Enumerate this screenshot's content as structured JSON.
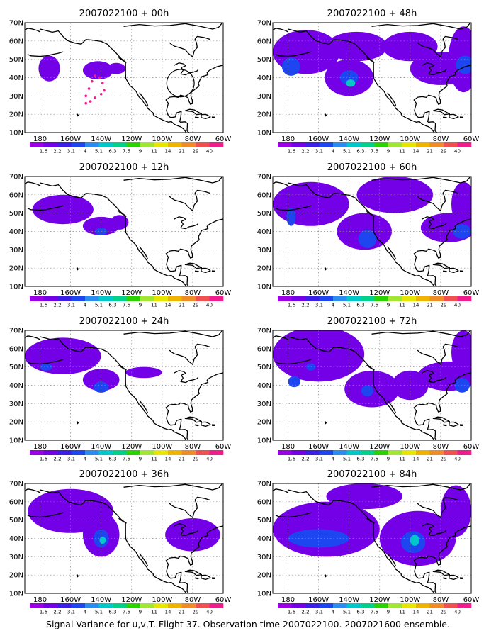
{
  "colorbar": {
    "labels": [
      "1.6",
      "2.2",
      "3.1",
      "4",
      "5.1",
      "6.3",
      "7.5",
      "9",
      "11",
      "14",
      "21",
      "29",
      "40"
    ],
    "colors": [
      "#9b00e6",
      "#7300e6",
      "#3c1fe6",
      "#1e46f0",
      "#2a8cf0",
      "#00c8c8",
      "#00d28c",
      "#2ad200",
      "#a0e632",
      "#e6e600",
      "#f0b400",
      "#f08c28",
      "#f05050",
      "#f01e8c"
    ]
  },
  "axes": {
    "lon_labels": [
      "180",
      "160W",
      "140W",
      "120W",
      "100W",
      "80W",
      "60W"
    ],
    "lat_labels": [
      "10N",
      "20N",
      "30N",
      "40N",
      "50N",
      "60N",
      "70N"
    ]
  },
  "panels": [
    {
      "title": "2007022100 + 00h",
      "blobs": [
        {
          "lon": 174,
          "lat": 45,
          "rx": 7,
          "ry": 7,
          "level": 1
        },
        {
          "lon": 142,
          "lat": 44,
          "rx": 10,
          "ry": 5,
          "level": 1
        },
        {
          "lon": 130,
          "lat": 45,
          "rx": 6,
          "ry": 3,
          "level": 1
        }
      ],
      "circle": {
        "lon": 88,
        "lat": 37,
        "r": 9
      },
      "track": [
        [
          150,
          30
        ],
        [
          148,
          34
        ],
        [
          146,
          38
        ],
        [
          144,
          41
        ],
        [
          141,
          40
        ],
        [
          139,
          37
        ],
        [
          138,
          33
        ],
        [
          140,
          31
        ],
        [
          144,
          29
        ],
        [
          147,
          27
        ],
        [
          150,
          26
        ]
      ]
    },
    {
      "title": "2007022100 + 48h",
      "blobs": [
        {
          "lon": 168,
          "lat": 54,
          "rx": 22,
          "ry": 12,
          "level": 1
        },
        {
          "lon": 140,
          "lat": 40,
          "rx": 16,
          "ry": 10,
          "level": 1
        },
        {
          "lon": 135,
          "lat": 57,
          "rx": 20,
          "ry": 8,
          "level": 1
        },
        {
          "lon": 100,
          "lat": 57,
          "rx": 18,
          "ry": 8,
          "level": 1
        },
        {
          "lon": 80,
          "lat": 45,
          "rx": 20,
          "ry": 9,
          "level": 1
        },
        {
          "lon": 65,
          "lat": 50,
          "rx": 10,
          "ry": 18,
          "level": 1
        },
        {
          "lon": 178,
          "lat": 46,
          "rx": 6,
          "ry": 5,
          "level": 3
        },
        {
          "lon": 140,
          "lat": 40,
          "rx": 6,
          "ry": 4,
          "level": 3
        },
        {
          "lon": 139,
          "lat": 37,
          "rx": 3,
          "ry": 2,
          "level": 5
        },
        {
          "lon": 64,
          "lat": 47,
          "rx": 6,
          "ry": 5,
          "level": 3
        }
      ]
    },
    {
      "title": "2007022100 + 12h",
      "blobs": [
        {
          "lon": 165,
          "lat": 52,
          "rx": 20,
          "ry": 8,
          "level": 1
        },
        {
          "lon": 140,
          "lat": 43,
          "rx": 12,
          "ry": 5,
          "level": 1
        },
        {
          "lon": 128,
          "lat": 45,
          "rx": 6,
          "ry": 4,
          "level": 1
        },
        {
          "lon": 140,
          "lat": 40,
          "rx": 4,
          "ry": 2,
          "level": 3
        }
      ]
    },
    {
      "title": "2007022100 + 60h",
      "blobs": [
        {
          "lon": 165,
          "lat": 55,
          "rx": 25,
          "ry": 12,
          "level": 1
        },
        {
          "lon": 130,
          "lat": 40,
          "rx": 18,
          "ry": 10,
          "level": 1
        },
        {
          "lon": 110,
          "lat": 60,
          "rx": 25,
          "ry": 10,
          "level": 1
        },
        {
          "lon": 75,
          "lat": 42,
          "rx": 18,
          "ry": 8,
          "level": 1
        },
        {
          "lon": 65,
          "lat": 55,
          "rx": 8,
          "ry": 12,
          "level": 1
        },
        {
          "lon": 178,
          "lat": 48,
          "rx": 3,
          "ry": 5,
          "level": 3
        },
        {
          "lon": 128,
          "lat": 36,
          "rx": 6,
          "ry": 5,
          "level": 3
        },
        {
          "lon": 66,
          "lat": 40,
          "rx": 6,
          "ry": 4,
          "level": 3
        }
      ]
    },
    {
      "title": "2007022100 + 24h",
      "blobs": [
        {
          "lon": 165,
          "lat": 56,
          "rx": 25,
          "ry": 10,
          "level": 1
        },
        {
          "lon": 140,
          "lat": 43,
          "rx": 12,
          "ry": 6,
          "level": 1
        },
        {
          "lon": 112,
          "lat": 47,
          "rx": 12,
          "ry": 3,
          "level": 1
        },
        {
          "lon": 176,
          "lat": 50,
          "rx": 4,
          "ry": 2,
          "level": 3
        },
        {
          "lon": 140,
          "lat": 39,
          "rx": 5,
          "ry": 3,
          "level": 3
        }
      ]
    },
    {
      "title": "2007022100 + 72h",
      "blobs": [
        {
          "lon": 160,
          "lat": 57,
          "rx": 30,
          "ry": 15,
          "level": 1
        },
        {
          "lon": 125,
          "lat": 38,
          "rx": 18,
          "ry": 10,
          "level": 1
        },
        {
          "lon": 100,
          "lat": 40,
          "rx": 12,
          "ry": 8,
          "level": 1
        },
        {
          "lon": 75,
          "lat": 45,
          "rx": 20,
          "ry": 8,
          "level": 1
        },
        {
          "lon": 65,
          "lat": 58,
          "rx": 8,
          "ry": 12,
          "level": 1
        },
        {
          "lon": 176,
          "lat": 42,
          "rx": 4,
          "ry": 3,
          "level": 3
        },
        {
          "lon": 165,
          "lat": 50,
          "rx": 3,
          "ry": 2,
          "level": 3
        },
        {
          "lon": 128,
          "lat": 37,
          "rx": 4,
          "ry": 3,
          "level": 3
        },
        {
          "lon": 66,
          "lat": 40,
          "rx": 5,
          "ry": 4,
          "level": 3
        }
      ]
    },
    {
      "title": "2007022100 + 36h",
      "blobs": [
        {
          "lon": 160,
          "lat": 55,
          "rx": 28,
          "ry": 12,
          "level": 1
        },
        {
          "lon": 140,
          "lat": 42,
          "rx": 12,
          "ry": 12,
          "level": 1
        },
        {
          "lon": 80,
          "lat": 42,
          "rx": 18,
          "ry": 9,
          "level": 1
        },
        {
          "lon": 140,
          "lat": 40,
          "rx": 5,
          "ry": 5,
          "level": 3
        },
        {
          "lon": 139,
          "lat": 39,
          "rx": 2,
          "ry": 2,
          "level": 5
        }
      ]
    },
    {
      "title": "2007022100 + 84h",
      "blobs": [
        {
          "lon": 155,
          "lat": 45,
          "rx": 35,
          "ry": 15,
          "level": 1
        },
        {
          "lon": 130,
          "lat": 63,
          "rx": 25,
          "ry": 7,
          "level": 1
        },
        {
          "lon": 95,
          "lat": 40,
          "rx": 25,
          "ry": 15,
          "level": 1
        },
        {
          "lon": 70,
          "lat": 55,
          "rx": 10,
          "ry": 14,
          "level": 1
        },
        {
          "lon": 160,
          "lat": 40,
          "rx": 20,
          "ry": 5,
          "level": 3
        },
        {
          "lon": 98,
          "lat": 38,
          "rx": 8,
          "ry": 6,
          "level": 3
        },
        {
          "lon": 97,
          "lat": 39,
          "rx": 3,
          "ry": 3,
          "level": 5
        }
      ]
    }
  ],
  "footer": "Signal Variance for u,v,T. Flight 37. Observation time 2007022100. 2007021600 ensemble."
}
